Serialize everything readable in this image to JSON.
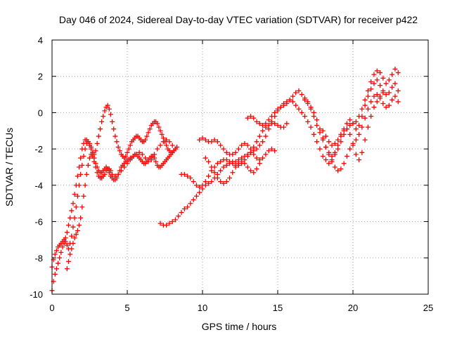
{
  "chart_data": {
    "type": "scatter",
    "title": "Day 046 of 2024, Sidereal Day-to-day VTEC variation (SDTVAR) for receiver p422",
    "xlabel": "GPS time / hours",
    "ylabel": "SDTVAR / TECUs",
    "xlim": [
      0,
      25
    ],
    "ylim": [
      -10,
      4
    ],
    "xticks": [
      0,
      5,
      10,
      15,
      20,
      25
    ],
    "yticks": [
      -10,
      -8,
      -6,
      -4,
      -2,
      0,
      2,
      4
    ],
    "grid": true,
    "marker": "+",
    "color": "#ff0000",
    "series": [
      {
        "x": [
          0.0,
          0.1,
          0.2,
          0.3,
          0.4,
          0.5,
          0.6,
          0.7,
          0.8,
          0.9,
          1.0,
          1.1,
          1.2,
          1.3,
          1.4,
          1.5,
          1.6,
          1.7,
          1.8,
          1.9,
          2.0,
          2.1,
          2.2,
          2.3,
          2.4,
          2.5,
          2.6,
          2.7,
          2.8,
          2.9,
          3.0,
          3.1,
          3.2,
          3.3,
          3.4,
          3.5,
          3.6,
          3.7,
          3.8,
          3.9,
          4.0,
          4.1,
          4.2,
          4.3,
          4.4,
          4.5,
          4.6,
          4.7,
          4.8,
          4.9,
          5.0,
          5.1,
          5.2,
          5.3,
          5.4,
          5.5,
          5.6,
          5.7,
          5.8,
          5.9,
          6.0,
          6.1,
          6.2,
          6.3,
          6.4,
          6.5,
          6.6,
          6.7,
          6.8,
          6.9,
          7.0,
          7.1,
          7.2,
          7.3,
          7.4,
          7.5,
          7.6,
          7.7,
          7.8,
          7.9,
          8.0,
          8.1,
          8.2,
          8.3
        ],
        "y": [
          -9.8,
          -9.3,
          -8.9,
          -8.6,
          -8.3,
          -8.0,
          -7.7,
          -7.4,
          -7.2,
          -6.9,
          -6.6,
          -6.2,
          -5.8,
          -5.4,
          -5.0,
          -4.5,
          -4.0,
          -3.5,
          -3.0,
          -2.5,
          -2.0,
          -1.7,
          -1.5,
          -1.5,
          -1.6,
          -1.8,
          -2.0,
          -2.2,
          -2.3,
          -2.1,
          -1.7,
          -1.3,
          -0.9,
          -0.5,
          -0.2,
          0.1,
          0.3,
          0.4,
          0.2,
          -0.1,
          -0.5,
          -0.9,
          -1.3,
          -1.6,
          -1.9,
          -2.1,
          -2.3,
          -2.4,
          -2.5,
          -2.4,
          -2.2,
          -2.0,
          -1.8,
          -1.6,
          -1.5,
          -1.4,
          -1.3,
          -1.3,
          -1.4,
          -1.5,
          -1.6,
          -1.6,
          -1.5,
          -1.3,
          -1.1,
          -0.9,
          -0.7,
          -0.6,
          -0.5,
          -0.5,
          -0.6,
          -0.8,
          -1.0,
          -1.2,
          -1.4,
          -1.6,
          -1.8,
          -2.0,
          -2.1,
          -2.2,
          -2.2,
          -2.1,
          -2.0,
          -1.9
        ]
      },
      {
        "x": [
          0.0,
          0.1,
          0.2,
          0.3,
          0.4,
          0.5,
          0.6,
          0.7,
          0.8,
          0.9,
          1.0,
          1.1,
          1.2,
          1.3,
          1.4,
          1.5,
          1.6,
          1.7,
          1.8,
          1.9,
          2.0,
          2.1,
          2.2,
          2.3,
          2.4,
          2.5,
          2.6,
          2.7,
          2.8,
          2.9,
          3.0,
          3.1,
          3.2,
          3.3,
          3.4,
          3.5,
          3.6,
          3.7,
          3.8,
          3.9,
          4.0,
          4.1,
          4.2,
          4.3,
          4.4,
          4.5,
          4.6,
          4.7,
          4.8,
          4.9,
          5.0,
          5.1,
          5.2,
          5.3,
          5.4,
          5.5,
          5.6,
          5.7,
          5.8,
          5.9,
          6.0,
          6.1,
          6.2,
          6.3,
          6.4,
          6.5,
          6.6,
          6.7,
          6.8,
          6.9,
          7.0,
          7.1,
          7.2,
          7.3,
          7.4,
          7.5,
          7.6,
          7.7,
          7.8,
          7.9,
          8.0,
          8.1,
          8.2
        ],
        "y": [
          -8.5,
          -8.1,
          -7.8,
          -7.6,
          -7.4,
          -7.3,
          -7.2,
          -7.1,
          -7.0,
          -7.1,
          -7.3,
          -7.5,
          -7.2,
          -6.8,
          -6.3,
          -5.8,
          -5.2,
          -4.6,
          -4.0,
          -3.4,
          -2.9,
          -2.4,
          -2.0,
          -1.7,
          -1.6,
          -1.7,
          -1.9,
          -2.2,
          -2.5,
          -2.8,
          -3.0,
          -3.2,
          -3.3,
          -3.3,
          -3.2,
          -3.1,
          -3.0,
          -3.1,
          -3.3,
          -3.5,
          -3.6,
          -3.7,
          -3.7,
          -3.6,
          -3.4,
          -3.2,
          -3.0,
          -2.9,
          -2.8,
          -2.7,
          -2.6,
          -2.6,
          -2.5,
          -2.5,
          -2.4,
          -2.3,
          -2.3,
          -2.4,
          -2.5,
          -2.6,
          -2.7,
          -2.8,
          -2.8,
          -2.7,
          -2.6,
          -2.5,
          -2.4,
          -2.4,
          -2.5,
          -2.7,
          -2.9,
          -3.0,
          -3.0,
          -2.9,
          -2.8,
          -2.7,
          -2.6,
          -2.5,
          -2.4,
          -2.3,
          -2.2,
          -2.1,
          -2.0
        ]
      },
      {
        "x": [
          1.0,
          1.1,
          1.2,
          1.3,
          1.4,
          1.5,
          1.6,
          1.7,
          1.8,
          1.9,
          2.0,
          2.1,
          2.2,
          2.3,
          2.4,
          2.5,
          2.6,
          2.7,
          2.8,
          2.9,
          3.0,
          3.1,
          3.2,
          3.3,
          3.4,
          3.5,
          3.6,
          3.7,
          3.8,
          3.9,
          4.0,
          4.2,
          4.4,
          4.6,
          4.8,
          5.0,
          5.2,
          5.4,
          5.6,
          5.8,
          6.0,
          6.2,
          6.4,
          6.6,
          6.8,
          7.0,
          7.2,
          7.4,
          7.6,
          7.8,
          8.0
        ],
        "y": [
          -8.6,
          -8.2,
          -7.8,
          -7.5,
          -7.2,
          -6.9,
          -6.7,
          -6.5,
          -6.2,
          -5.8,
          -5.2,
          -4.6,
          -4.0,
          -3.4,
          -2.9,
          -2.5,
          -2.3,
          -2.4,
          -2.7,
          -3.0,
          -3.3,
          -3.5,
          -3.6,
          -3.6,
          -3.5,
          -3.4,
          -3.2,
          -3.1,
          -3.1,
          -3.2,
          -3.4,
          -3.5,
          -3.4,
          -3.2,
          -3.0,
          -2.8,
          -2.6,
          -2.4,
          -2.3,
          -2.2,
          -2.3,
          -2.5,
          -2.7,
          -2.6,
          -2.3,
          -2.0,
          -1.8,
          -1.6,
          -1.5,
          -1.6,
          -1.8
        ]
      },
      {
        "x": [
          7.2,
          7.4,
          7.6,
          7.8,
          8.0,
          8.2,
          8.4,
          8.6,
          8.8,
          9.0,
          9.2,
          9.4,
          9.6,
          9.8,
          10.0,
          10.2,
          10.4,
          10.6,
          10.8,
          11.0,
          11.2,
          11.4,
          11.6,
          11.8,
          12.0,
          12.2,
          12.4,
          12.6,
          12.8,
          13.0,
          13.2,
          13.4,
          13.6,
          13.8,
          14.0,
          14.2,
          14.4,
          14.6,
          14.8,
          15.0,
          15.2,
          15.4,
          15.6,
          15.8,
          16.0,
          16.2,
          16.4,
          16.6,
          16.8,
          17.0,
          17.2,
          17.4,
          17.6,
          17.8,
          18.0,
          18.2,
          18.4,
          18.6,
          18.8,
          19.0,
          19.2,
          19.4,
          19.6,
          19.8,
          20.0,
          20.2,
          20.4,
          20.6,
          20.8,
          21.0,
          21.2,
          21.4,
          21.6,
          21.8,
          22.0,
          22.2,
          22.4,
          22.6,
          22.8,
          23.0
        ],
        "y": [
          -6.1,
          -6.2,
          -6.2,
          -6.1,
          -6.0,
          -5.9,
          -5.7,
          -5.5,
          -5.3,
          -5.2,
          -5.0,
          -4.8,
          -4.6,
          -4.4,
          -4.2,
          -4.0,
          -3.9,
          -3.8,
          -3.6,
          -3.4,
          -3.2,
          -3.0,
          -2.9,
          -2.8,
          -2.7,
          -2.7,
          -2.6,
          -2.5,
          -2.4,
          -2.3,
          -2.2,
          -2.1,
          -2.0,
          -1.8,
          -1.6,
          -1.3,
          -0.9,
          -0.5,
          -0.2,
          0.1,
          0.3,
          0.5,
          0.6,
          0.7,
          0.6,
          0.4,
          0.2,
          0.0,
          -0.2,
          -0.5,
          -0.8,
          -1.2,
          -1.6,
          -2.0,
          -2.4,
          -2.6,
          -2.8,
          -2.6,
          -2.2,
          -1.8,
          -1.3,
          -0.9,
          -0.6,
          -0.4,
          -0.6,
          -0.9,
          -0.7,
          -0.2,
          0.4,
          0.9,
          1.3,
          1.6,
          1.8,
          1.5,
          1.2,
          1.0,
          1.1,
          1.4,
          1.6,
          1.2
        ]
      },
      {
        "x": [
          8.6,
          8.8,
          9.0,
          9.2,
          9.4,
          9.6,
          9.8,
          10.0,
          10.2,
          10.4,
          10.6,
          10.8,
          11.0,
          11.2,
          11.4,
          11.6,
          11.8,
          12.0,
          12.2,
          12.4,
          12.6,
          12.8,
          13.0,
          13.2,
          13.4,
          13.6,
          13.8,
          14.0,
          14.2,
          14.4,
          14.6,
          14.8,
          15.0,
          15.2,
          15.4,
          15.6
        ],
        "y": [
          -3.4,
          -3.4,
          -3.5,
          -3.6,
          -3.8,
          -4.0,
          -4.1,
          -4.0,
          -3.8,
          -3.5,
          -3.2,
          -3.0,
          -2.8,
          -2.7,
          -2.6,
          -2.6,
          -2.7,
          -2.8,
          -2.9,
          -2.9,
          -2.8,
          -2.6,
          -2.4,
          -2.2,
          -1.9,
          -1.6,
          -1.3,
          -1.0,
          -0.8,
          -0.7,
          -0.6,
          -0.6,
          -0.7,
          -0.8,
          -0.8,
          -0.6
        ]
      },
      {
        "x": [
          9.8,
          10.0,
          10.2,
          10.4,
          10.6,
          10.8,
          11.0,
          11.2,
          11.4,
          11.6,
          11.8,
          12.0,
          12.2,
          12.4,
          12.6,
          12.8,
          13.0,
          13.2,
          13.4,
          13.6,
          13.8,
          14.0,
          14.2,
          14.4,
          14.6,
          14.8
        ],
        "y": [
          -1.5,
          -1.4,
          -1.5,
          -1.6,
          -1.6,
          -1.5,
          -1.6,
          -1.8,
          -2.0,
          -2.2,
          -2.3,
          -2.3,
          -2.2,
          -2.0,
          -1.8,
          -1.7,
          -1.8,
          -2.0,
          -2.3,
          -2.5,
          -2.6,
          -2.5,
          -2.3,
          -2.1,
          -2.0,
          -2.1
        ]
      },
      {
        "x": [
          10.2,
          10.4,
          10.6,
          10.8,
          11.0,
          11.2,
          11.4,
          11.6,
          11.8,
          12.0,
          12.2,
          12.4,
          12.6,
          12.8,
          13.0,
          13.2,
          13.4,
          13.6,
          13.8
        ],
        "y": [
          -2.5,
          -2.7,
          -3.0,
          -3.3,
          -3.6,
          -3.8,
          -3.9,
          -3.8,
          -3.6,
          -3.3,
          -3.0,
          -2.8,
          -2.7,
          -2.8,
          -3.0,
          -3.2,
          -3.3,
          -3.1,
          -2.8
        ]
      },
      {
        "x": [
          13.0,
          13.2,
          13.4,
          13.6,
          13.8,
          14.0,
          14.2,
          14.4,
          14.6,
          14.8,
          15.0,
          15.2,
          15.4,
          15.6,
          15.8,
          16.0,
          16.2,
          16.4,
          16.6,
          16.8,
          17.0,
          17.2,
          17.4,
          17.6,
          17.8,
          18.0,
          18.2,
          18.4,
          18.6,
          18.8,
          19.0,
          19.2,
          19.4,
          19.6,
          19.8,
          20.0,
          20.2,
          20.4,
          20.6,
          20.8,
          21.0,
          21.2,
          21.4,
          21.6,
          21.8,
          22.0,
          22.2,
          22.4,
          22.6,
          22.8,
          23.0
        ],
        "y": [
          -0.3,
          -0.2,
          -0.3,
          -0.5,
          -0.6,
          -0.7,
          -0.6,
          -0.4,
          -0.2,
          0.0,
          0.2,
          0.3,
          0.4,
          0.5,
          0.7,
          0.9,
          1.1,
          1.2,
          1.0,
          0.7,
          0.5,
          0.2,
          -0.2,
          -0.7,
          -1.1,
          -1.5,
          -1.9,
          -2.2,
          -2.4,
          -2.3,
          -2.0,
          -1.6,
          -1.2,
          -0.9,
          -0.7,
          -0.6,
          -0.5,
          -0.2,
          0.2,
          0.7,
          1.2,
          1.7,
          2.1,
          2.3,
          2.2,
          1.9,
          1.6,
          1.8,
          2.1,
          2.4,
          2.2
        ]
      },
      {
        "x": [
          16.8,
          17.0,
          17.2,
          17.4,
          17.6,
          17.8,
          18.0,
          18.2,
          18.4,
          18.6,
          18.8,
          19.0,
          19.2,
          19.4,
          19.6,
          19.8,
          20.0,
          20.2,
          20.4,
          20.6,
          20.8,
          21.0,
          21.2,
          21.4,
          21.6,
          21.8,
          22.0,
          22.2,
          22.4,
          22.6,
          22.8,
          23.0
        ],
        "y": [
          0.8,
          0.6,
          0.3,
          0.0,
          -0.4,
          -0.9,
          -1.4,
          -1.9,
          -2.3,
          -2.7,
          -3.0,
          -3.2,
          -3.1,
          -2.8,
          -2.4,
          -2.0,
          -1.7,
          -1.5,
          -1.2,
          -0.8,
          -0.3,
          0.2,
          0.6,
          0.9,
          1.0,
          0.8,
          0.5,
          0.3,
          0.4,
          0.7,
          0.9,
          0.6
        ]
      },
      {
        "x": [
          18.0,
          18.2,
          18.4,
          18.6,
          18.8,
          19.0,
          19.2,
          19.4,
          19.6,
          19.8,
          20.0,
          20.2,
          20.4,
          20.6,
          20.8,
          21.0,
          21.2,
          21.4,
          21.6,
          21.8,
          22.0
        ],
        "y": [
          -1.0,
          -1.3,
          -1.6,
          -1.8,
          -1.7,
          -1.5,
          -1.2,
          -1.0,
          -0.9,
          -1.2,
          -1.8,
          -2.3,
          -2.6,
          -2.2,
          -1.5,
          -0.8,
          -0.2,
          0.3,
          0.6,
          0.9,
          1.1
        ]
      }
    ]
  }
}
